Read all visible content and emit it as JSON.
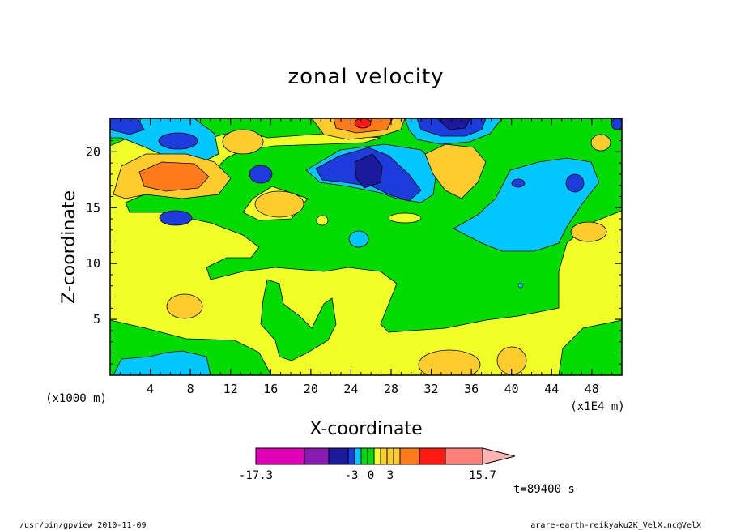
{
  "chart_data": {
    "type": "heatmap",
    "title": "zonal velocity",
    "xlabel": "X-coordinate",
    "ylabel": "Z-coordinate",
    "x_unit": "(x1E4 m)",
    "y_unit": "(x1000 m)",
    "x_ticks": [
      4,
      8,
      12,
      16,
      20,
      24,
      28,
      32,
      36,
      40,
      44,
      48
    ],
    "y_ticks": [
      5,
      10,
      15,
      20
    ],
    "xlim": [
      0,
      51
    ],
    "ylim": [
      0,
      23
    ],
    "levels": [
      -17.3,
      -14,
      -10,
      -7,
      -3,
      -2,
      -1,
      0,
      1,
      2,
      3,
      5,
      9,
      12,
      15.7
    ],
    "colorbar_labels": [
      "-17.3",
      "-3",
      "0",
      "3",
      "15.7"
    ],
    "colors": {
      "magenta": "#e000b8",
      "purple": "#8a1ab4",
      "navy": "#1a1a9a",
      "blue": "#1c3cdc",
      "lightblue": "#00c8ff",
      "green": "#00dc00",
      "yellow": "#f0ff28",
      "gold": "#ffcc2e",
      "orange": "#ff7a18",
      "red": "#ff1a10",
      "salmon": "#ff8078",
      "pink": "#ffb4b4"
    },
    "time_label": "t=89400 s"
  },
  "footer": {
    "left": "/usr/bin/gpview   2010-11-09",
    "right": "arare-earth-reikyaku2K_VelX.nc@VelX"
  }
}
